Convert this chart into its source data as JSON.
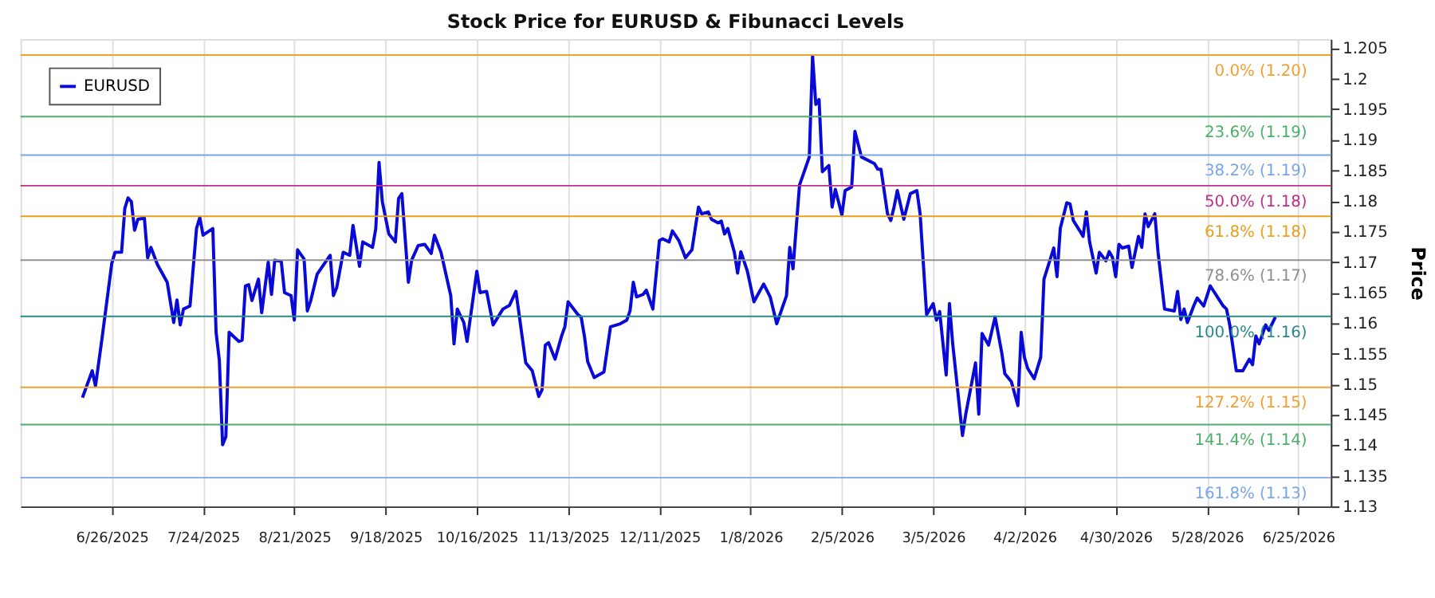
{
  "chart_data": {
    "type": "line",
    "title": "Stock Price for EURUSD & Fibunacci Levels",
    "ylabel": "Price",
    "x": [
      "2025-06-17",
      "2025-06-20",
      "2025-06-21",
      "2025-06-23",
      "2025-06-26",
      "2025-06-27",
      "2025-06-29",
      "2025-06-30",
      "2025-07-01",
      "2025-07-02",
      "2025-07-03",
      "2025-07-04",
      "2025-07-06",
      "2025-07-07",
      "2025-07-08",
      "2025-07-10",
      "2025-07-13",
      "2025-07-15",
      "2025-07-16",
      "2025-07-17",
      "2025-07-18",
      "2025-07-20",
      "2025-07-22",
      "2025-07-23",
      "2025-07-24",
      "2025-07-27",
      "2025-07-28",
      "2025-07-29",
      "2025-07-30",
      "2025-07-31",
      "2025-08-01",
      "2025-08-04",
      "2025-08-05",
      "2025-08-06",
      "2025-08-07",
      "2025-08-08",
      "2025-08-10",
      "2025-08-11",
      "2025-08-13",
      "2025-08-14",
      "2025-08-15",
      "2025-08-17",
      "2025-08-18",
      "2025-08-20",
      "2025-08-21",
      "2025-08-22",
      "2025-08-24",
      "2025-08-25",
      "2025-08-26",
      "2025-08-28",
      "2025-09-01",
      "2025-09-02",
      "2025-09-03",
      "2025-09-05",
      "2025-09-07",
      "2025-09-08",
      "2025-09-10",
      "2025-09-11",
      "2025-09-14",
      "2025-09-15",
      "2025-09-16",
      "2025-09-17",
      "2025-09-19",
      "2025-09-21",
      "2025-09-22",
      "2025-09-23",
      "2025-09-25",
      "2025-09-26",
      "2025-09-28",
      "2025-09-30",
      "2025-10-02",
      "2025-10-03",
      "2025-10-05",
      "2025-10-08",
      "2025-10-09",
      "2025-10-10",
      "2025-10-12",
      "2025-10-13",
      "2025-10-16",
      "2025-10-17",
      "2025-10-19",
      "2025-10-21",
      "2025-10-24",
      "2025-10-26",
      "2025-10-28",
      "2025-10-31",
      "2025-11-02",
      "2025-11-04",
      "2025-11-05",
      "2025-11-06",
      "2025-11-07",
      "2025-11-09",
      "2025-11-11",
      "2025-11-12",
      "2025-11-13",
      "2025-11-16",
      "2025-11-17",
      "2025-11-18",
      "2025-11-19",
      "2025-11-21",
      "2025-11-24",
      "2025-11-26",
      "2025-11-29",
      "2025-12-01",
      "2025-12-02",
      "2025-12-03",
      "2025-12-04",
      "2025-12-06",
      "2025-12-07",
      "2025-12-09",
      "2025-12-11",
      "2025-12-12",
      "2025-12-14",
      "2025-12-15",
      "2025-12-17",
      "2025-12-19",
      "2025-12-21",
      "2025-12-23",
      "2025-12-24",
      "2025-12-26",
      "2025-12-27",
      "2025-12-29",
      "2025-12-30",
      "2025-12-31",
      "2026-01-01",
      "2026-01-03",
      "2026-01-04",
      "2026-01-05",
      "2026-01-07",
      "2026-01-09",
      "2026-01-12",
      "2026-01-14",
      "2026-01-16",
      "2026-01-19",
      "2026-01-20",
      "2026-01-21",
      "2026-01-23",
      "2026-01-26",
      "2026-01-27",
      "2026-01-28",
      "2026-01-29",
      "2026-01-30",
      "2026-02-01",
      "2026-02-02",
      "2026-02-03",
      "2026-02-05",
      "2026-02-06",
      "2026-02-08",
      "2026-02-09",
      "2026-02-11",
      "2026-02-15",
      "2026-02-16",
      "2026-02-17",
      "2026-02-19",
      "2026-02-20",
      "2026-02-21",
      "2026-02-22",
      "2026-02-24",
      "2026-02-26",
      "2026-02-28",
      "2026-03-01",
      "2026-03-03",
      "2026-03-05",
      "2026-03-06",
      "2026-03-07",
      "2026-03-09",
      "2026-03-10",
      "2026-03-11",
      "2026-03-14",
      "2026-03-15",
      "2026-03-18",
      "2026-03-19",
      "2026-03-20",
      "2026-03-22",
      "2026-03-24",
      "2026-03-26",
      "2026-03-27",
      "2026-03-29",
      "2026-03-31",
      "2026-04-01",
      "2026-04-02",
      "2026-04-03",
      "2026-04-05",
      "2026-04-07",
      "2026-04-08",
      "2026-04-11",
      "2026-04-12",
      "2026-04-13",
      "2026-04-15",
      "2026-04-16",
      "2026-04-17",
      "2026-04-19",
      "2026-04-20",
      "2026-04-21",
      "2026-04-22",
      "2026-04-24",
      "2026-04-25",
      "2026-04-27",
      "2026-04-28",
      "2026-04-29",
      "2026-04-30",
      "2026-05-01",
      "2026-05-02",
      "2026-05-04",
      "2026-05-05",
      "2026-05-07",
      "2026-05-08",
      "2026-05-09",
      "2026-05-10",
      "2026-05-12",
      "2026-05-13",
      "2026-05-15",
      "2026-05-18",
      "2026-05-19",
      "2026-05-20",
      "2026-05-21",
      "2026-05-22",
      "2026-05-24",
      "2026-05-25",
      "2026-05-27",
      "2026-05-29",
      "2026-06-02",
      "2026-06-03",
      "2026-06-04",
      "2026-06-06",
      "2026-06-08",
      "2026-06-10",
      "2026-06-11",
      "2026-06-12",
      "2026-06-13",
      "2026-06-15",
      "2026-06-16",
      "2026-06-18"
    ],
    "series": [
      {
        "name": "EURUSD",
        "color": "#0a0ad8",
        "values": [
          1.1478,
          1.1522,
          1.1497,
          1.1575,
          1.1698,
          1.1716,
          1.1716,
          1.1788,
          1.1805,
          1.1799,
          1.1752,
          1.177,
          1.1772,
          1.1707,
          1.1724,
          1.1696,
          1.1667,
          1.1601,
          1.1638,
          1.1597,
          1.1623,
          1.1628,
          1.1755,
          1.1773,
          1.1744,
          1.1755,
          1.1585,
          1.1539,
          1.1401,
          1.1414,
          1.1585,
          1.157,
          1.1572,
          1.1661,
          1.1663,
          1.1637,
          1.1672,
          1.1617,
          1.17,
          1.1647,
          1.1703,
          1.1701,
          1.165,
          1.1645,
          1.1605,
          1.172,
          1.1705,
          1.162,
          1.1636,
          1.168,
          1.1711,
          1.1645,
          1.1658,
          1.1716,
          1.1711,
          1.176,
          1.1693,
          1.1733,
          1.1724,
          1.1755,
          1.1863,
          1.1799,
          1.1746,
          1.1733,
          1.1804,
          1.1812,
          1.1667,
          1.1703,
          1.1727,
          1.1729,
          1.1714,
          1.1744,
          1.1716,
          1.1645,
          1.1566,
          1.1623,
          1.1601,
          1.157,
          1.1685,
          1.165,
          1.1652,
          1.1597,
          1.1623,
          1.1629,
          1.1652,
          1.1535,
          1.1522,
          1.148,
          1.1491,
          1.1564,
          1.1568,
          1.1541,
          1.1579,
          1.1594,
          1.1635,
          1.1614,
          1.161,
          1.1579,
          1.1537,
          1.1511,
          1.152,
          1.1594,
          1.1599,
          1.1605,
          1.162,
          1.1667,
          1.1643,
          1.1647,
          1.1654,
          1.1623,
          1.1735,
          1.1738,
          1.1733,
          1.1751,
          1.1735,
          1.1707,
          1.172,
          1.179,
          1.1779,
          1.1782,
          1.177,
          1.1764,
          1.1767,
          1.1746,
          1.1755,
          1.1716,
          1.1682,
          1.1717,
          1.1685,
          1.1635,
          1.1664,
          1.1643,
          1.1599,
          1.1645,
          1.1724,
          1.1689,
          1.1826,
          1.1872,
          1.2037,
          1.1958,
          1.1966,
          1.1848,
          1.1858,
          1.179,
          1.1819,
          1.1777,
          1.1817,
          1.1823,
          1.1914,
          1.1872,
          1.1861,
          1.1852,
          1.1852,
          1.1779,
          1.1768,
          1.179,
          1.1817,
          1.177,
          1.1812,
          1.1817,
          1.1779,
          1.1614,
          1.1632,
          1.1605,
          1.1619,
          1.1515,
          1.1632,
          1.1566,
          1.1416,
          1.1451,
          1.1535,
          1.1451,
          1.1583,
          1.1564,
          1.161,
          1.1553,
          1.1517,
          1.1504,
          1.1465,
          1.1585,
          1.1544,
          1.1526,
          1.1509,
          1.1544,
          1.1672,
          1.1723,
          1.1676,
          1.1755,
          1.1797,
          1.1795,
          1.1768,
          1.1751,
          1.1742,
          1.1782,
          1.1733,
          1.1682,
          1.1716,
          1.1702,
          1.1717,
          1.1708,
          1.1676,
          1.1729,
          1.1723,
          1.1726,
          1.1691,
          1.1742,
          1.1724,
          1.1779,
          1.1758,
          1.1779,
          1.1716,
          1.1623,
          1.162,
          1.1652,
          1.1606,
          1.1623,
          1.1601,
          1.1629,
          1.1641,
          1.1628,
          1.1661,
          1.1628,
          1.1623,
          1.1597,
          1.1522,
          1.1522,
          1.1541,
          1.1532,
          1.1579,
          1.1566,
          1.1597,
          1.1588,
          1.161
        ]
      }
    ],
    "xlim": [
      "2025-05-29",
      "2026-07-05"
    ],
    "xticks": [
      {
        "value": "2025-06-26",
        "label": "6/26/2025"
      },
      {
        "value": "2025-07-24",
        "label": "7/24/2025"
      },
      {
        "value": "2025-08-21",
        "label": "8/21/2025"
      },
      {
        "value": "2025-09-18",
        "label": "9/18/2025"
      },
      {
        "value": "2025-10-16",
        "label": "10/16/2025"
      },
      {
        "value": "2025-11-13",
        "label": "11/13/2025"
      },
      {
        "value": "2025-12-11",
        "label": "12/11/2025"
      },
      {
        "value": "2026-01-08",
        "label": "1/8/2026"
      },
      {
        "value": "2026-02-05",
        "label": "2/5/2026"
      },
      {
        "value": "2026-03-05",
        "label": "3/5/2026"
      },
      {
        "value": "2026-04-02",
        "label": "4/2/2026"
      },
      {
        "value": "2026-04-30",
        "label": "4/30/2026"
      },
      {
        "value": "2026-05-28",
        "label": "5/28/2026"
      },
      {
        "value": "2026-06-25",
        "label": "6/25/2026"
      }
    ],
    "ylim": [
      1.13,
      1.2065
    ],
    "yticks": [
      1.13,
      1.135,
      1.14,
      1.145,
      1.15,
      1.155,
      1.16,
      1.165,
      1.17,
      1.175,
      1.18,
      1.185,
      1.19,
      1.195,
      1.2,
      1.205
    ],
    "ref_lines": [
      {
        "axis": "y",
        "value": 1.2039,
        "label": "0.0% (1.20)",
        "color": "#f0a030"
      },
      {
        "axis": "y",
        "value": 1.1938,
        "label": "23.6% (1.19)",
        "color": "#4caf6a"
      },
      {
        "axis": "y",
        "value": 1.1875,
        "label": "38.2% (1.19)",
        "color": "#7aa6e8"
      },
      {
        "axis": "y",
        "value": 1.1825,
        "label": "50.0% (1.18)",
        "color": "#c0308a"
      },
      {
        "axis": "y",
        "value": 1.1775,
        "label": "61.8% (1.18)",
        "color": "#e8a020"
      },
      {
        "axis": "y",
        "value": 1.1703,
        "label": "78.6% (1.17)",
        "color": "#909090"
      },
      {
        "axis": "y",
        "value": 1.1611,
        "label": "100.0% (1.16)",
        "color": "#2a8a8a"
      },
      {
        "axis": "y",
        "value": 1.1495,
        "label": "127.2% (1.15)",
        "color": "#f0a030"
      },
      {
        "axis": "y",
        "value": 1.1434,
        "label": "141.4% (1.14)",
        "color": "#4caf6a"
      },
      {
        "axis": "y",
        "value": 1.1347,
        "label": "161.8% (1.13)",
        "color": "#7aa6e8"
      }
    ],
    "grid": "x",
    "legend": "top left",
    "marker": "none",
    "line_style": "solid"
  }
}
